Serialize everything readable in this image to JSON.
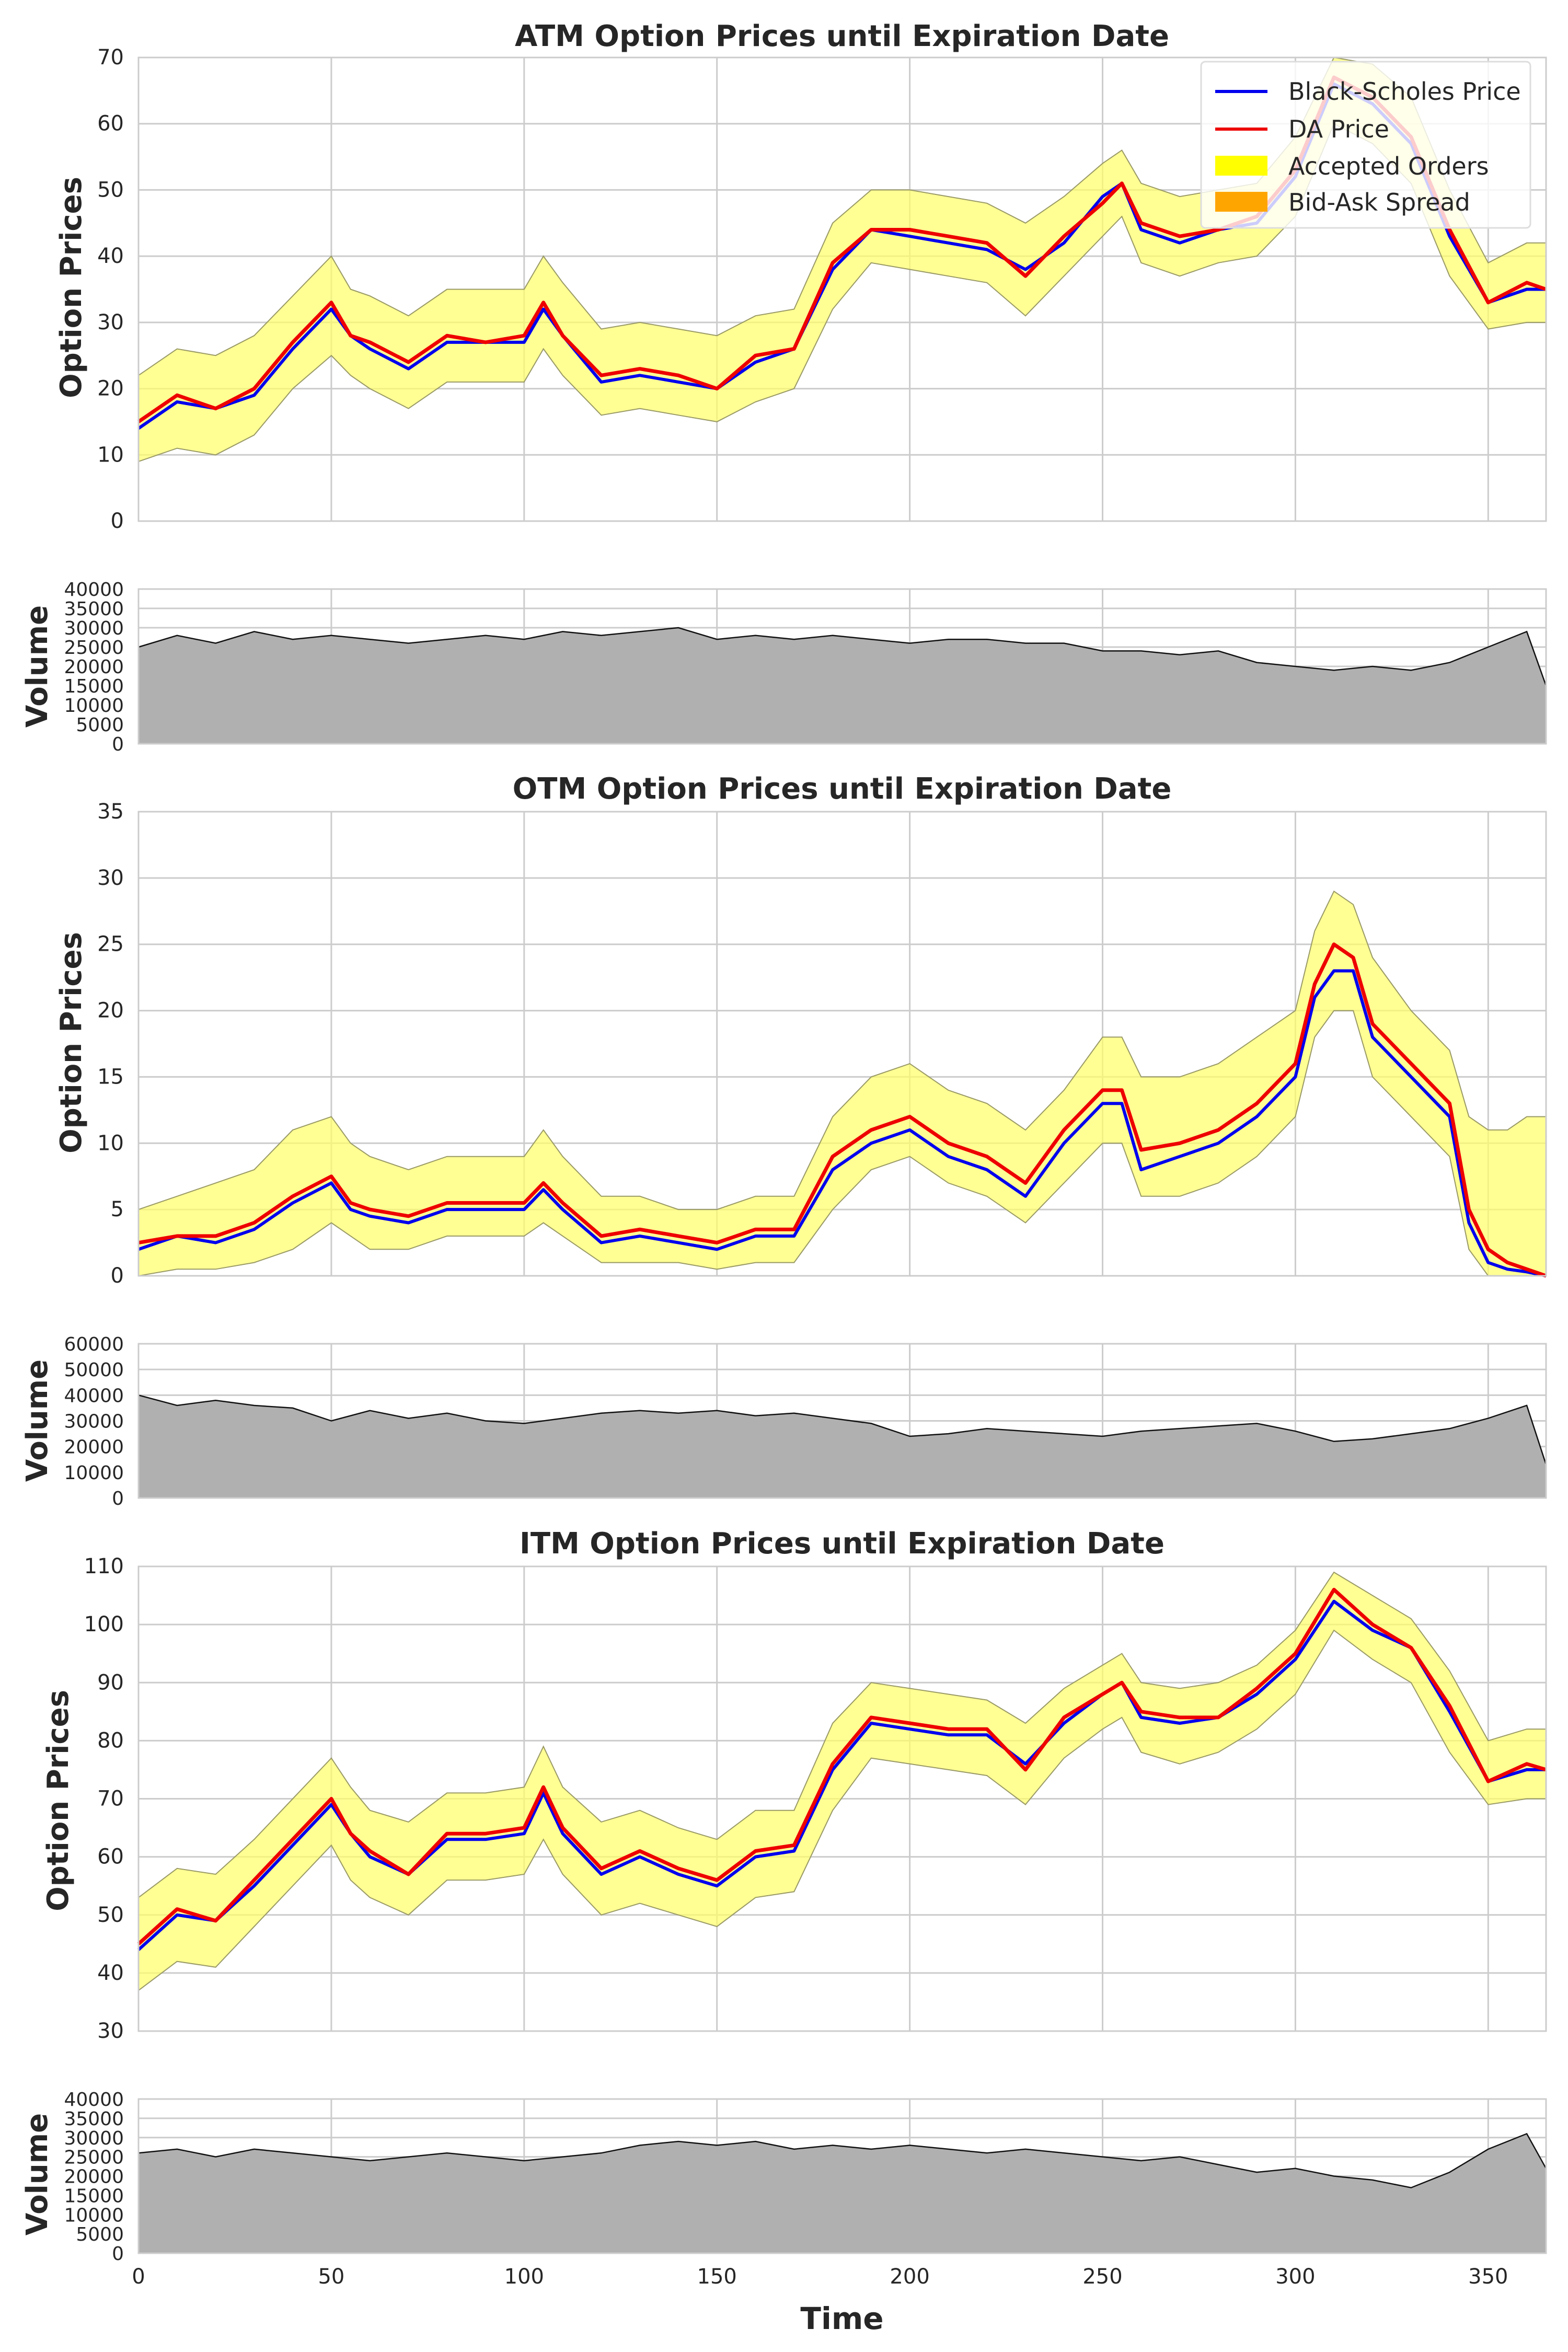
{
  "colors": {
    "bs_line": "#0000ee",
    "da_line": "#ee0000",
    "accepted_fill": "#ffff66",
    "accepted_edge": "#999966",
    "bidask_fill": "#ffa500",
    "volume_fill": "#b0b0b0",
    "grid": "#cccccc",
    "frame": "#cccccc"
  },
  "legend": {
    "items": [
      {
        "label": "Black-Scholes Price",
        "kind": "line",
        "color": "#0000ee"
      },
      {
        "label": "DA Price",
        "kind": "line",
        "color": "#ee0000"
      },
      {
        "label": "Accepted Orders",
        "kind": "patch",
        "color": "#ffff00"
      },
      {
        "label": "Bid-Ask Spread",
        "kind": "patch",
        "color": "#ffa500"
      }
    ],
    "placement": "top-right"
  },
  "xaxis": {
    "label": "Time",
    "ticks": [
      0,
      50,
      100,
      150,
      200,
      250,
      300,
      350
    ],
    "range": [
      0,
      365
    ]
  },
  "chart_data": [
    {
      "type": "line",
      "title": "ATM Option Prices until Expiration Date",
      "ylabel": "Option Prices",
      "ylim": [
        0,
        70
      ],
      "yticks": [
        0,
        10,
        20,
        30,
        40,
        50,
        60,
        70
      ],
      "grid": true,
      "x": [
        0,
        10,
        20,
        30,
        40,
        50,
        55,
        60,
        70,
        80,
        90,
        100,
        105,
        110,
        120,
        130,
        140,
        150,
        160,
        170,
        180,
        190,
        200,
        210,
        220,
        230,
        240,
        250,
        255,
        260,
        270,
        280,
        290,
        300,
        310,
        320,
        330,
        340,
        350,
        360,
        365
      ],
      "series": [
        {
          "name": "Black-Scholes Price",
          "values": [
            14,
            18,
            17,
            19,
            26,
            32,
            28,
            26,
            23,
            27,
            27,
            27,
            32,
            28,
            21,
            22,
            21,
            20,
            24,
            26,
            38,
            44,
            43,
            42,
            41,
            38,
            42,
            49,
            51,
            44,
            42,
            44,
            45,
            52,
            66,
            63,
            57,
            43,
            33,
            35,
            35
          ]
        },
        {
          "name": "DA Price",
          "values": [
            15,
            19,
            17,
            20,
            27,
            33,
            28,
            27,
            24,
            28,
            27,
            28,
            33,
            28,
            22,
            23,
            22,
            20,
            25,
            26,
            39,
            44,
            44,
            43,
            42,
            37,
            43,
            48,
            51,
            45,
            43,
            44,
            46,
            53,
            67,
            64,
            58,
            44,
            33,
            36,
            35
          ]
        },
        {
          "name": "Accepted Orders",
          "upper": [
            22,
            26,
            25,
            28,
            34,
            40,
            35,
            34,
            31,
            35,
            35,
            35,
            40,
            36,
            29,
            30,
            29,
            28,
            31,
            32,
            45,
            50,
            50,
            49,
            48,
            45,
            49,
            54,
            56,
            51,
            49,
            50,
            51,
            58,
            70,
            69,
            64,
            50,
            39,
            42,
            42
          ],
          "lower": [
            9,
            11,
            10,
            13,
            20,
            25,
            22,
            20,
            17,
            21,
            21,
            21,
            26,
            22,
            16,
            17,
            16,
            15,
            18,
            20,
            32,
            39,
            38,
            37,
            36,
            31,
            37,
            43,
            46,
            39,
            37,
            39,
            40,
            46,
            60,
            57,
            51,
            37,
            29,
            30,
            30
          ]
        }
      ]
    },
    {
      "type": "area",
      "title": "",
      "ylabel": "Volume",
      "ylim": [
        0,
        40000
      ],
      "yticks": [
        0,
        5000,
        10000,
        15000,
        20000,
        25000,
        30000,
        35000,
        40000
      ],
      "grid": true,
      "x": [
        0,
        10,
        20,
        30,
        40,
        50,
        60,
        70,
        80,
        90,
        100,
        110,
        120,
        130,
        140,
        150,
        160,
        170,
        180,
        190,
        200,
        210,
        220,
        230,
        240,
        250,
        260,
        270,
        280,
        290,
        300,
        310,
        320,
        330,
        340,
        350,
        360,
        365
      ],
      "values": [
        25000,
        28000,
        26000,
        29000,
        27000,
        28000,
        27000,
        26000,
        27000,
        28000,
        27000,
        29000,
        28000,
        29000,
        30000,
        27000,
        28000,
        27000,
        28000,
        27000,
        26000,
        27000,
        27000,
        26000,
        26000,
        24000,
        24000,
        23000,
        24000,
        21000,
        20000,
        19000,
        20000,
        19000,
        21000,
        25000,
        29000,
        15000
      ]
    },
    {
      "type": "line",
      "title": "OTM Option Prices until Expiration Date",
      "ylabel": "Option Prices",
      "ylim": [
        0,
        35
      ],
      "yticks": [
        0,
        5,
        10,
        15,
        20,
        25,
        30,
        35
      ],
      "grid": true,
      "x": [
        0,
        10,
        20,
        30,
        40,
        50,
        55,
        60,
        70,
        80,
        90,
        100,
        105,
        110,
        120,
        130,
        140,
        150,
        160,
        170,
        180,
        190,
        200,
        210,
        220,
        230,
        240,
        250,
        255,
        260,
        270,
        280,
        290,
        300,
        305,
        310,
        315,
        320,
        330,
        340,
        345,
        350,
        355,
        360,
        365
      ],
      "series": [
        {
          "name": "Black-Scholes Price",
          "values": [
            2,
            3,
            2.5,
            3.5,
            5.5,
            7,
            5,
            4.5,
            4,
            5,
            5,
            5,
            6.5,
            5,
            2.5,
            3,
            2.5,
            2,
            3,
            3,
            8,
            10,
            11,
            9,
            8,
            6,
            10,
            13,
            13,
            8,
            9,
            10,
            12,
            15,
            21,
            23,
            23,
            18,
            15,
            12,
            4,
            1,
            0.5,
            0.3,
            0
          ]
        },
        {
          "name": "DA Price",
          "values": [
            2.5,
            3,
            3,
            4,
            6,
            7.5,
            5.5,
            5,
            4.5,
            5.5,
            5.5,
            5.5,
            7,
            5.5,
            3,
            3.5,
            3,
            2.5,
            3.5,
            3.5,
            9,
            11,
            12,
            10,
            9,
            7,
            11,
            14,
            14,
            9.5,
            10,
            11,
            13,
            16,
            22,
            25,
            24,
            19,
            16,
            13,
            5,
            2,
            1,
            0.5,
            0
          ]
        },
        {
          "name": "Accepted Orders",
          "upper": [
            5,
            6,
            7,
            8,
            11,
            12,
            10,
            9,
            8,
            9,
            9,
            9,
            11,
            9,
            6,
            6,
            5,
            5,
            6,
            6,
            12,
            15,
            16,
            14,
            13,
            11,
            14,
            18,
            18,
            15,
            15,
            16,
            18,
            20,
            26,
            29,
            28,
            24,
            20,
            17,
            12,
            11,
            11,
            12,
            12
          ],
          "lower": [
            0,
            0.5,
            0.5,
            1,
            2,
            4,
            3,
            2,
            2,
            3,
            3,
            3,
            4,
            3,
            1,
            1,
            1,
            0.5,
            1,
            1,
            5,
            8,
            9,
            7,
            6,
            4,
            7,
            10,
            10,
            6,
            6,
            7,
            9,
            12,
            18,
            20,
            20,
            15,
            12,
            9,
            2,
            0,
            0,
            0,
            0
          ]
        }
      ]
    },
    {
      "type": "area",
      "title": "",
      "ylabel": "Volume",
      "ylim": [
        0,
        60000
      ],
      "yticks": [
        0,
        10000,
        20000,
        30000,
        40000,
        50000,
        60000
      ],
      "grid": true,
      "x": [
        0,
        10,
        20,
        30,
        40,
        50,
        60,
        70,
        80,
        90,
        100,
        110,
        120,
        130,
        140,
        150,
        160,
        170,
        180,
        190,
        200,
        210,
        220,
        230,
        240,
        250,
        260,
        270,
        280,
        290,
        300,
        310,
        320,
        330,
        340,
        350,
        360,
        365
      ],
      "values": [
        40000,
        36000,
        38000,
        36000,
        35000,
        30000,
        34000,
        31000,
        33000,
        30000,
        29000,
        31000,
        33000,
        34000,
        33000,
        34000,
        32000,
        33000,
        31000,
        29000,
        24000,
        25000,
        27000,
        26000,
        25000,
        24000,
        26000,
        27000,
        28000,
        29000,
        26000,
        22000,
        23000,
        25000,
        27000,
        31000,
        36000,
        13000
      ]
    },
    {
      "type": "line",
      "title": "ITM Option Prices until Expiration Date",
      "ylabel": "Option Prices",
      "ylim": [
        30,
        110
      ],
      "yticks": [
        30,
        40,
        50,
        60,
        70,
        80,
        90,
        100,
        110
      ],
      "grid": true,
      "x": [
        0,
        10,
        20,
        30,
        40,
        50,
        55,
        60,
        70,
        80,
        90,
        100,
        105,
        110,
        120,
        130,
        140,
        150,
        160,
        170,
        180,
        190,
        200,
        210,
        220,
        230,
        240,
        250,
        255,
        260,
        270,
        280,
        290,
        300,
        310,
        320,
        330,
        340,
        350,
        360,
        365
      ],
      "series": [
        {
          "name": "Black-Scholes Price",
          "values": [
            44,
            50,
            49,
            55,
            62,
            69,
            64,
            60,
            57,
            63,
            63,
            64,
            71,
            64,
            57,
            60,
            57,
            55,
            60,
            61,
            75,
            83,
            82,
            81,
            81,
            76,
            83,
            88,
            90,
            84,
            83,
            84,
            88,
            94,
            104,
            99,
            96,
            85,
            73,
            75,
            75
          ]
        },
        {
          "name": "DA Price",
          "values": [
            45,
            51,
            49,
            56,
            63,
            70,
            64,
            61,
            57,
            64,
            64,
            65,
            72,
            65,
            58,
            61,
            58,
            56,
            61,
            62,
            76,
            84,
            83,
            82,
            82,
            75,
            84,
            88,
            90,
            85,
            84,
            84,
            89,
            95,
            106,
            100,
            96,
            86,
            73,
            76,
            75
          ]
        },
        {
          "name": "Accepted Orders",
          "upper": [
            53,
            58,
            57,
            63,
            70,
            77,
            72,
            68,
            66,
            71,
            71,
            72,
            79,
            72,
            66,
            68,
            65,
            63,
            68,
            68,
            83,
            90,
            89,
            88,
            87,
            83,
            89,
            93,
            95,
            90,
            89,
            90,
            93,
            99,
            109,
            105,
            101,
            92,
            80,
            82,
            82
          ],
          "lower": [
            37,
            42,
            41,
            48,
            55,
            62,
            56,
            53,
            50,
            56,
            56,
            57,
            63,
            57,
            50,
            52,
            50,
            48,
            53,
            54,
            68,
            77,
            76,
            75,
            74,
            69,
            77,
            82,
            84,
            78,
            76,
            78,
            82,
            88,
            99,
            94,
            90,
            78,
            69,
            70,
            70
          ]
        }
      ]
    },
    {
      "type": "area",
      "title": "",
      "ylabel": "Volume",
      "ylim": [
        0,
        40000
      ],
      "yticks": [
        0,
        5000,
        10000,
        15000,
        20000,
        25000,
        30000,
        35000,
        40000
      ],
      "grid": true,
      "x": [
        0,
        10,
        20,
        30,
        40,
        50,
        60,
        70,
        80,
        90,
        100,
        110,
        120,
        130,
        140,
        150,
        160,
        170,
        180,
        190,
        200,
        210,
        220,
        230,
        240,
        250,
        260,
        270,
        280,
        290,
        300,
        310,
        320,
        330,
        340,
        350,
        360,
        365
      ],
      "values": [
        26000,
        27000,
        25000,
        27000,
        26000,
        25000,
        24000,
        25000,
        26000,
        25000,
        24000,
        25000,
        26000,
        28000,
        29000,
        28000,
        29000,
        27000,
        28000,
        27000,
        28000,
        27000,
        26000,
        27000,
        26000,
        25000,
        24000,
        25000,
        23000,
        21000,
        22000,
        20000,
        19000,
        17000,
        21000,
        27000,
        31000,
        22000
      ]
    }
  ]
}
